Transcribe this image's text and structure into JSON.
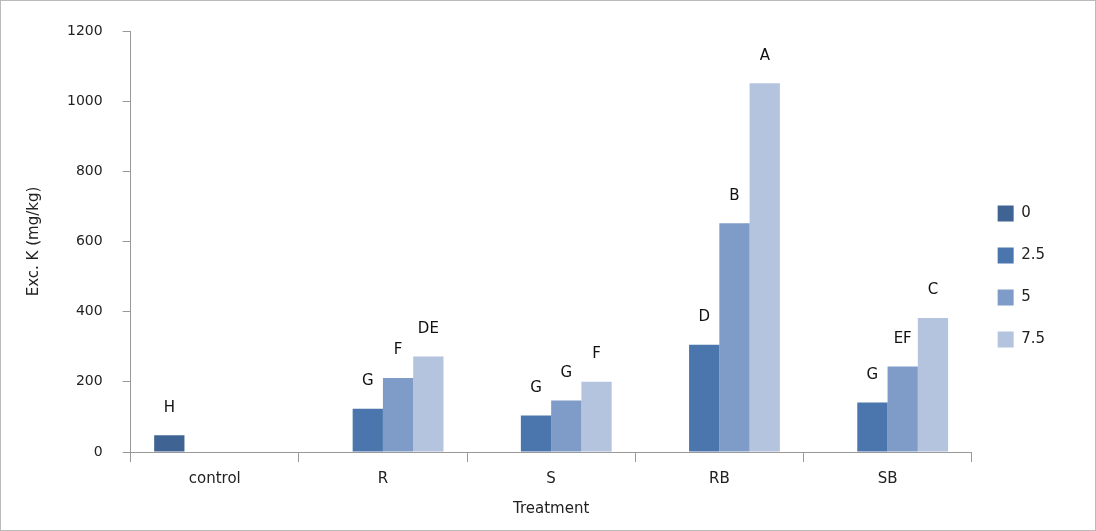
{
  "chart_data": {
    "type": "bar",
    "xlabel": "Treatment",
    "ylabel": "Exc. K (mg/kg)",
    "categories": [
      "control",
      "R",
      "S",
      "RB",
      "SB"
    ],
    "series": [
      {
        "name": "0",
        "color": "#3f6494",
        "values": [
          48,
          null,
          null,
          null,
          null
        ],
        "value_labels": [
          "H",
          null,
          null,
          null,
          null
        ]
      },
      {
        "name": "2.5",
        "color": "#4a76ad",
        "values": [
          null,
          123,
          104,
          306,
          141
        ],
        "value_labels": [
          null,
          "G",
          "G",
          "D",
          "G"
        ]
      },
      {
        "name": "5",
        "color": "#7f9cc8",
        "values": [
          null,
          211,
          147,
          652,
          244
        ],
        "value_labels": [
          null,
          "F",
          "G",
          "B",
          "EF"
        ]
      },
      {
        "name": "7.5",
        "color": "#b5c4de",
        "values": [
          null,
          272,
          200,
          1051,
          382
        ],
        "value_labels": [
          null,
          "DE",
          "F",
          "A",
          "C"
        ]
      }
    ],
    "ylim": [
      0,
      1200
    ],
    "yticks": [
      0,
      200,
      400,
      600,
      800,
      1000,
      1200
    ],
    "grid": false,
    "legend": "right"
  }
}
